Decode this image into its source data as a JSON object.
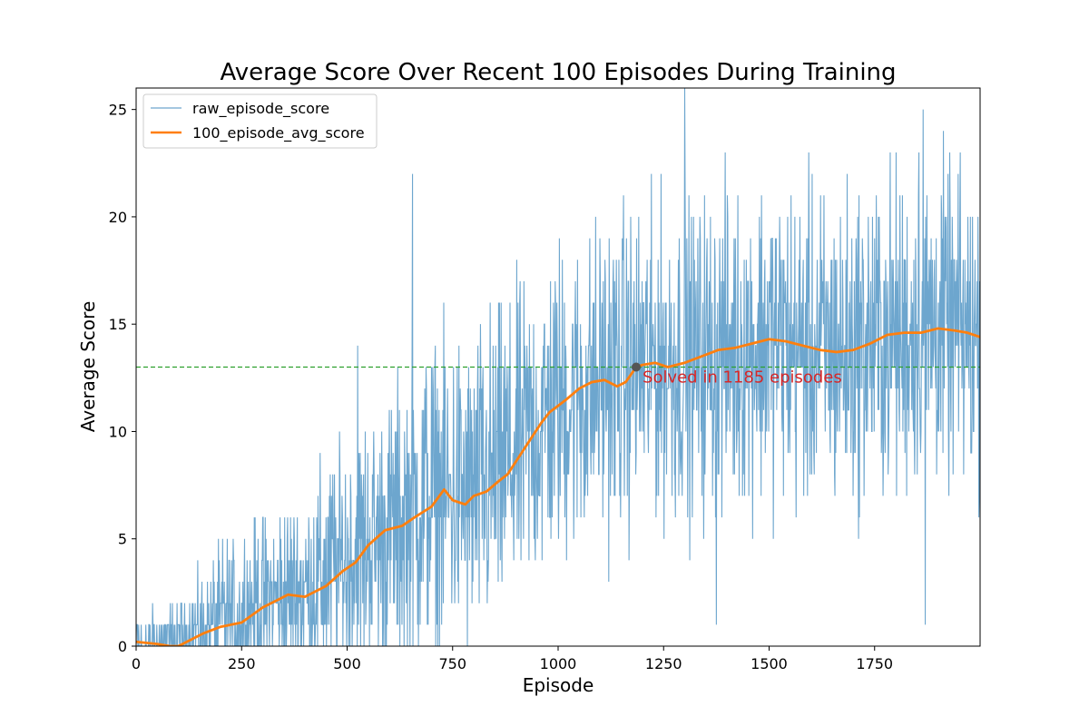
{
  "chart_data": {
    "type": "line",
    "title": "Average Score Over Recent 100 Episodes During Training",
    "xlabel": "Episode",
    "ylabel": "Average Score",
    "xlim": [
      0,
      2000
    ],
    "ylim": [
      0,
      26
    ],
    "xticks": [
      0,
      250,
      500,
      750,
      1000,
      1250,
      1500,
      1750
    ],
    "xtick_labels": [
      "0",
      "250",
      "500",
      "750",
      "1000",
      "1250",
      "1500",
      "1750"
    ],
    "yticks": [
      0,
      5,
      10,
      15,
      20,
      25
    ],
    "ytick_labels": [
      "0",
      "5",
      "10",
      "15",
      "20",
      "25"
    ],
    "grid": false,
    "legend_position": "top-left",
    "threshold": {
      "value": 13,
      "color": "#2ca02c",
      "style": "dashed"
    },
    "annotation": {
      "text": "Solved in 1185 episodes",
      "x": 1185,
      "y": 13,
      "color": "#d62728",
      "marker_color": "#555555"
    },
    "series": [
      {
        "name": "raw_episode_score",
        "color": "#1f77b4",
        "style": "thin",
        "generated": {
          "episodes": 2000,
          "anchors_x": [
            0,
            100,
            200,
            300,
            400,
            500,
            600,
            700,
            800,
            900,
            1000,
            1100,
            1200,
            1300,
            1400,
            1500,
            1600,
            1700,
            1800,
            1900,
            2000
          ],
          "anchors_mean": [
            0.2,
            0.3,
            1.2,
            2.0,
            2.6,
            4.0,
            5.3,
            7.0,
            7.0,
            9.0,
            11.2,
            12.3,
            13.1,
            13.2,
            13.8,
            14.3,
            13.8,
            13.8,
            14.6,
            14.9,
            14.4
          ],
          "anchors_spread": [
            0.8,
            1.0,
            2.0,
            2.5,
            3.0,
            3.5,
            4.0,
            4.5,
            4.5,
            4.5,
            4.5,
            4.5,
            4.5,
            4.5,
            4.5,
            4.5,
            4.5,
            4.5,
            4.5,
            4.5,
            4.5
          ],
          "peaks": [
            {
              "episode": 655,
              "score": 22
            },
            {
              "episode": 525,
              "score": 14
            },
            {
              "episode": 1300,
              "score": 26
            },
            {
              "episode": 1865,
              "score": 25
            },
            {
              "episode": 1855,
              "score": 23
            },
            {
              "episode": 1870,
              "score": 1
            },
            {
              "episode": 1375,
              "score": 1
            }
          ]
        }
      },
      {
        "name": "100_episode_avg_score",
        "color": "#ff7f0e",
        "style": "thick",
        "x": [
          0,
          50,
          80,
          100,
          130,
          160,
          200,
          250,
          300,
          340,
          360,
          400,
          450,
          490,
          520,
          550,
          590,
          630,
          660,
          700,
          730,
          750,
          780,
          800,
          830,
          860,
          880,
          900,
          930,
          960,
          980,
          1000,
          1020,
          1050,
          1080,
          1110,
          1140,
          1160,
          1185,
          1200,
          1230,
          1260,
          1300,
          1340,
          1380,
          1420,
          1460,
          1500,
          1540,
          1580,
          1620,
          1660,
          1700,
          1740,
          1780,
          1820,
          1860,
          1900,
          1940,
          1970,
          2000
        ],
        "y": [
          0.2,
          0.1,
          0.0,
          0.0,
          0.3,
          0.6,
          0.9,
          1.1,
          1.8,
          2.2,
          2.4,
          2.3,
          2.8,
          3.5,
          3.9,
          4.7,
          5.4,
          5.6,
          6.0,
          6.5,
          7.3,
          6.8,
          6.6,
          7.0,
          7.2,
          7.7,
          8.0,
          8.6,
          9.5,
          10.4,
          10.9,
          11.2,
          11.5,
          12.0,
          12.3,
          12.4,
          12.1,
          12.3,
          13.0,
          13.1,
          13.2,
          13.0,
          13.2,
          13.5,
          13.8,
          13.9,
          14.1,
          14.3,
          14.2,
          14.0,
          13.8,
          13.7,
          13.8,
          14.1,
          14.5,
          14.6,
          14.6,
          14.8,
          14.7,
          14.6,
          14.4
        ]
      }
    ]
  }
}
